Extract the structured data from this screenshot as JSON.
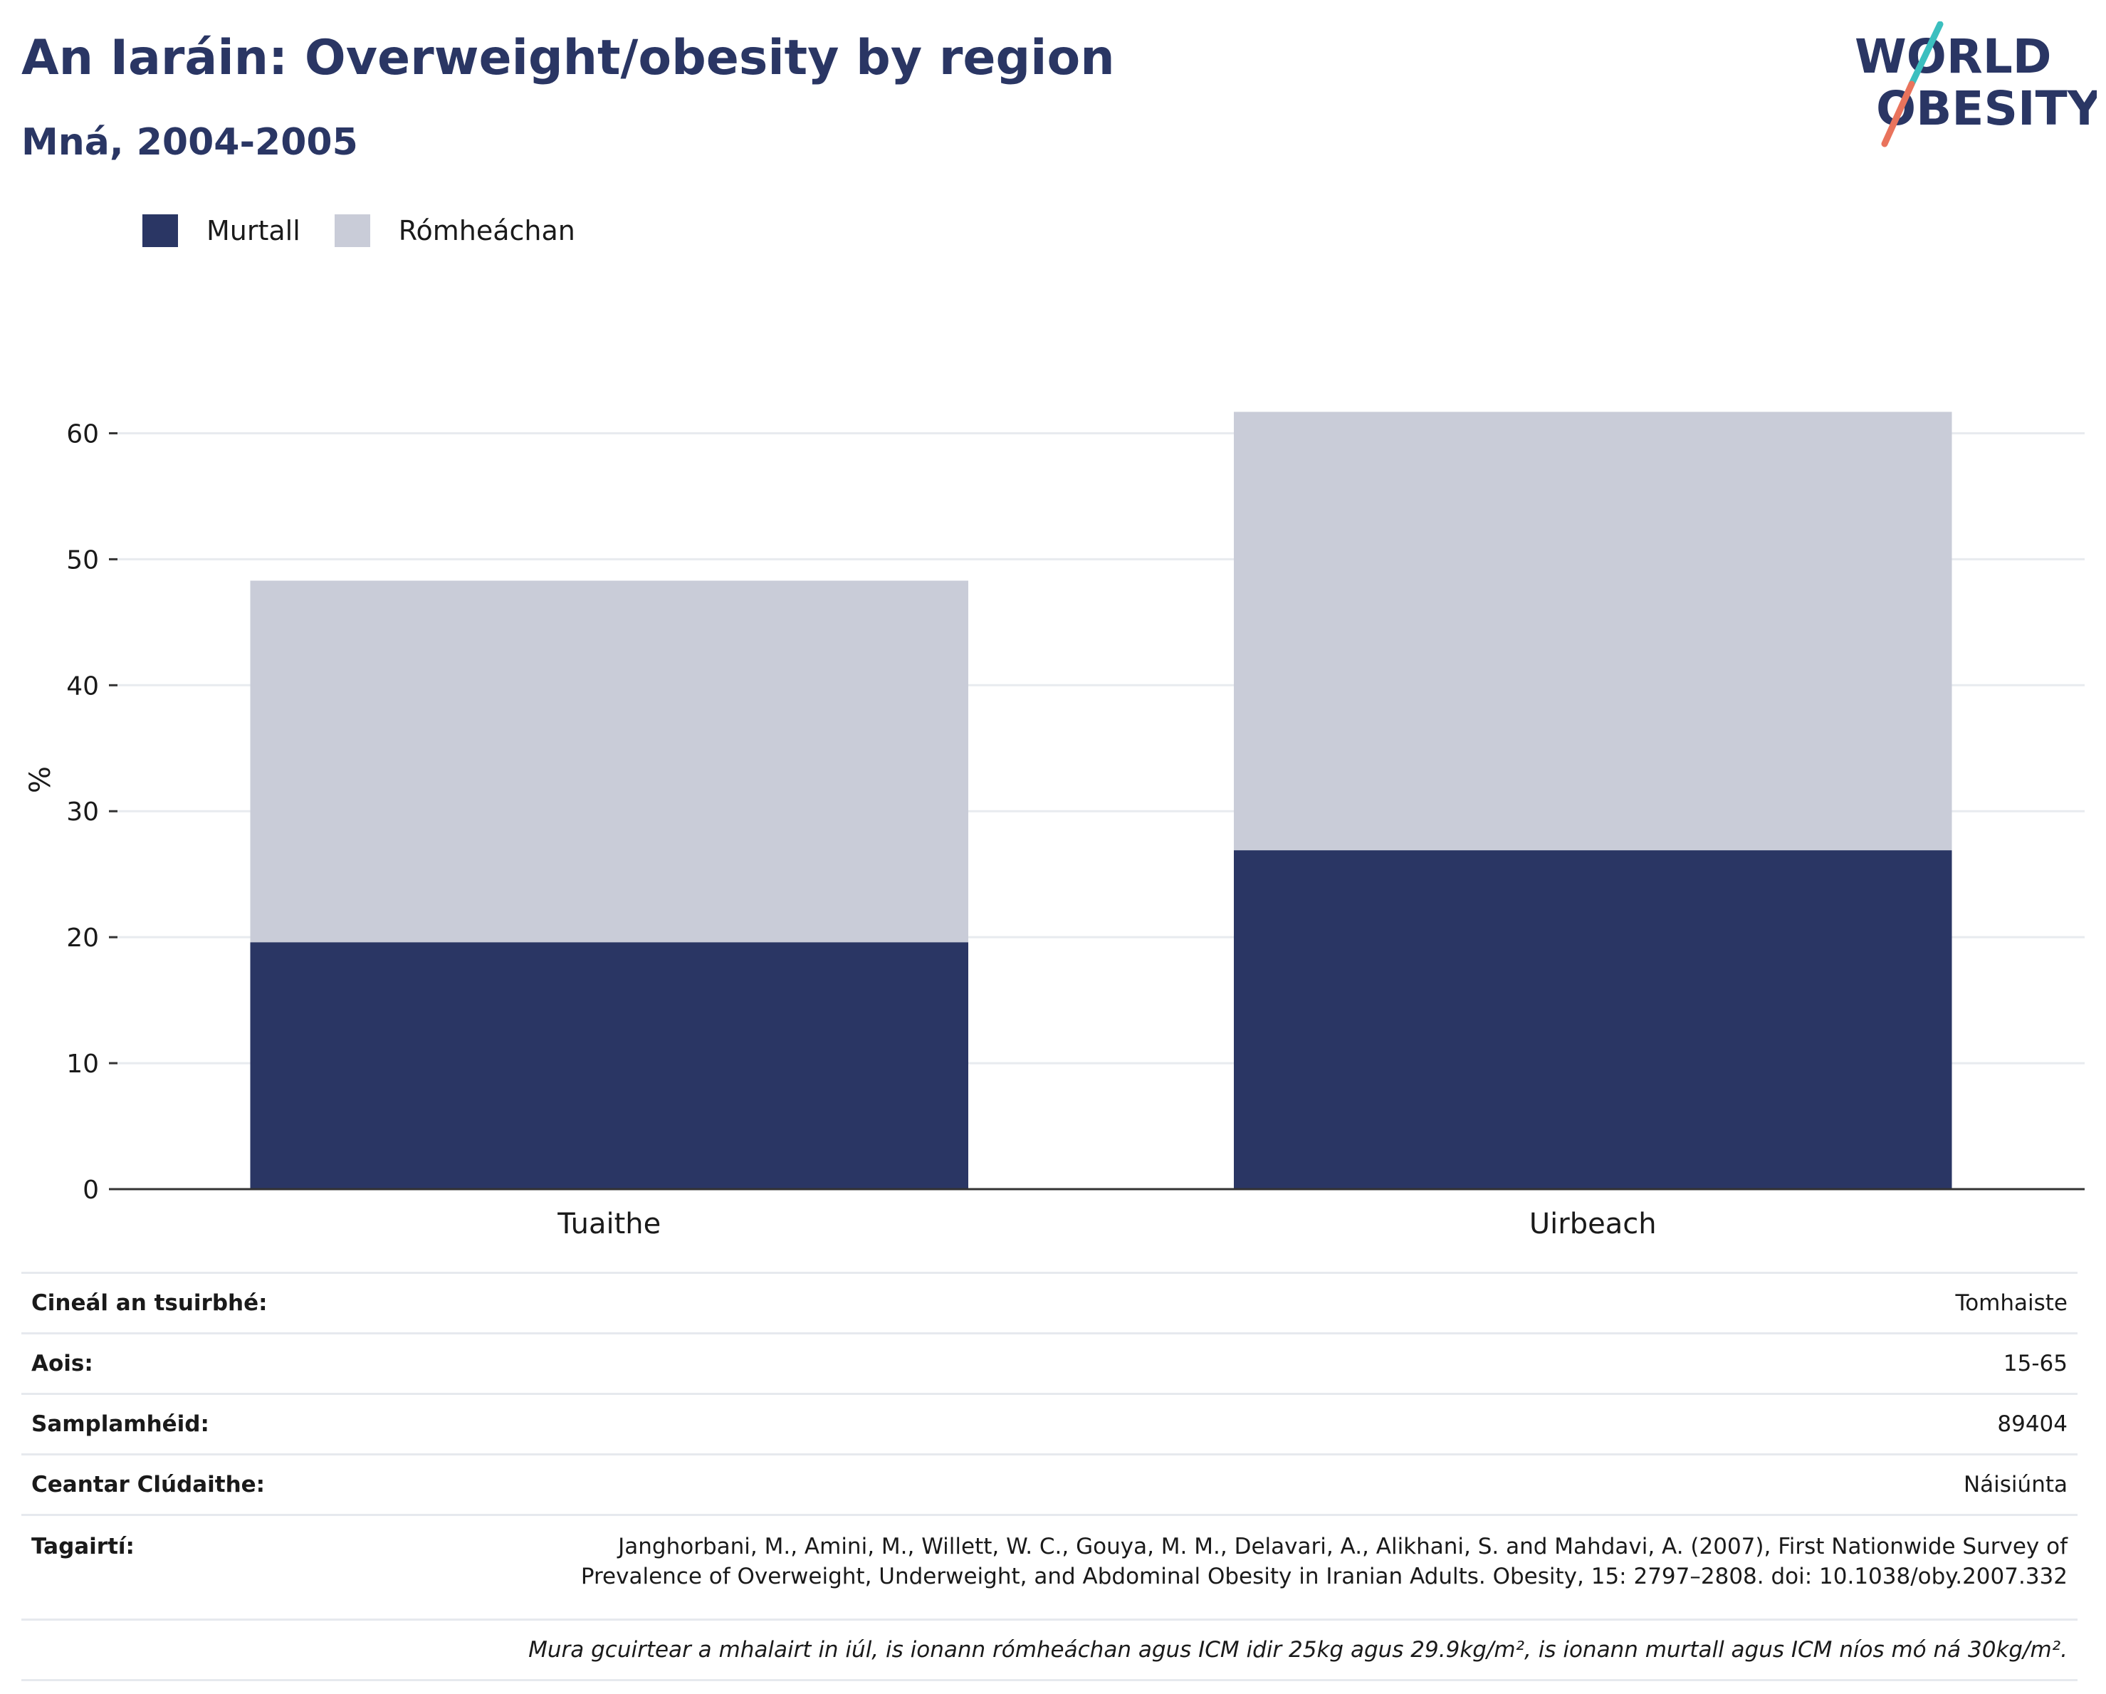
{
  "header": {
    "title": "An Iaráin: Overweight/obesity by region",
    "subtitle": "Mná, 2004-2005",
    "logo_line1": "WORLD",
    "logo_line2": "OBESITY"
  },
  "legend": [
    {
      "label": "Murtall",
      "color": "#2a3664"
    },
    {
      "label": "Rómheáchan",
      "color": "#c9ccd8"
    }
  ],
  "chart_data": {
    "type": "bar",
    "stacked": true,
    "categories": [
      "Tuaithe",
      "Uirbeach"
    ],
    "series": [
      {
        "name": "Murtall",
        "color": "#2a3664",
        "values": [
          19.6,
          26.9
        ]
      },
      {
        "name": "Rómheáchan",
        "color": "#c9ccd8",
        "values": [
          28.7,
          34.8
        ]
      }
    ],
    "xlabel": "",
    "ylabel": "%",
    "ylim": [
      0,
      65
    ],
    "yticks": [
      0,
      10,
      20,
      30,
      40,
      50,
      60
    ],
    "grid": true,
    "legend_position": "top-left"
  },
  "info": {
    "rows": [
      {
        "key": "Cineál an tsuirbhé:",
        "value": "Tomhaiste"
      },
      {
        "key": "Aois:",
        "value": "15-65"
      },
      {
        "key": "Samplamhéid:",
        "value": "89404"
      },
      {
        "key": "Ceantar Clúdaithe:",
        "value": "Náisiúnta"
      }
    ],
    "reference_key": "Tagairtí:",
    "reference_line1": "Janghorbani, M., Amini, M., Willett, W. C., Gouya, M. M., Delavari, A., Alikhani, S. and Mahdavi, A. (2007), First Nationwide Survey of",
    "reference_line2": "Prevalence of Overweight, Underweight, and Abdominal Obesity in Iranian Adults. Obesity, 15: 2797–2808. doi: 10.1038/oby.2007.332",
    "footnote": "Mura gcuirtear a mhalairt in iúl, is ionann rómheáchan agus ICM idir 25kg agus 29.9kg/m², is ionann murtall agus ICM níos mó ná 30kg/m²."
  }
}
